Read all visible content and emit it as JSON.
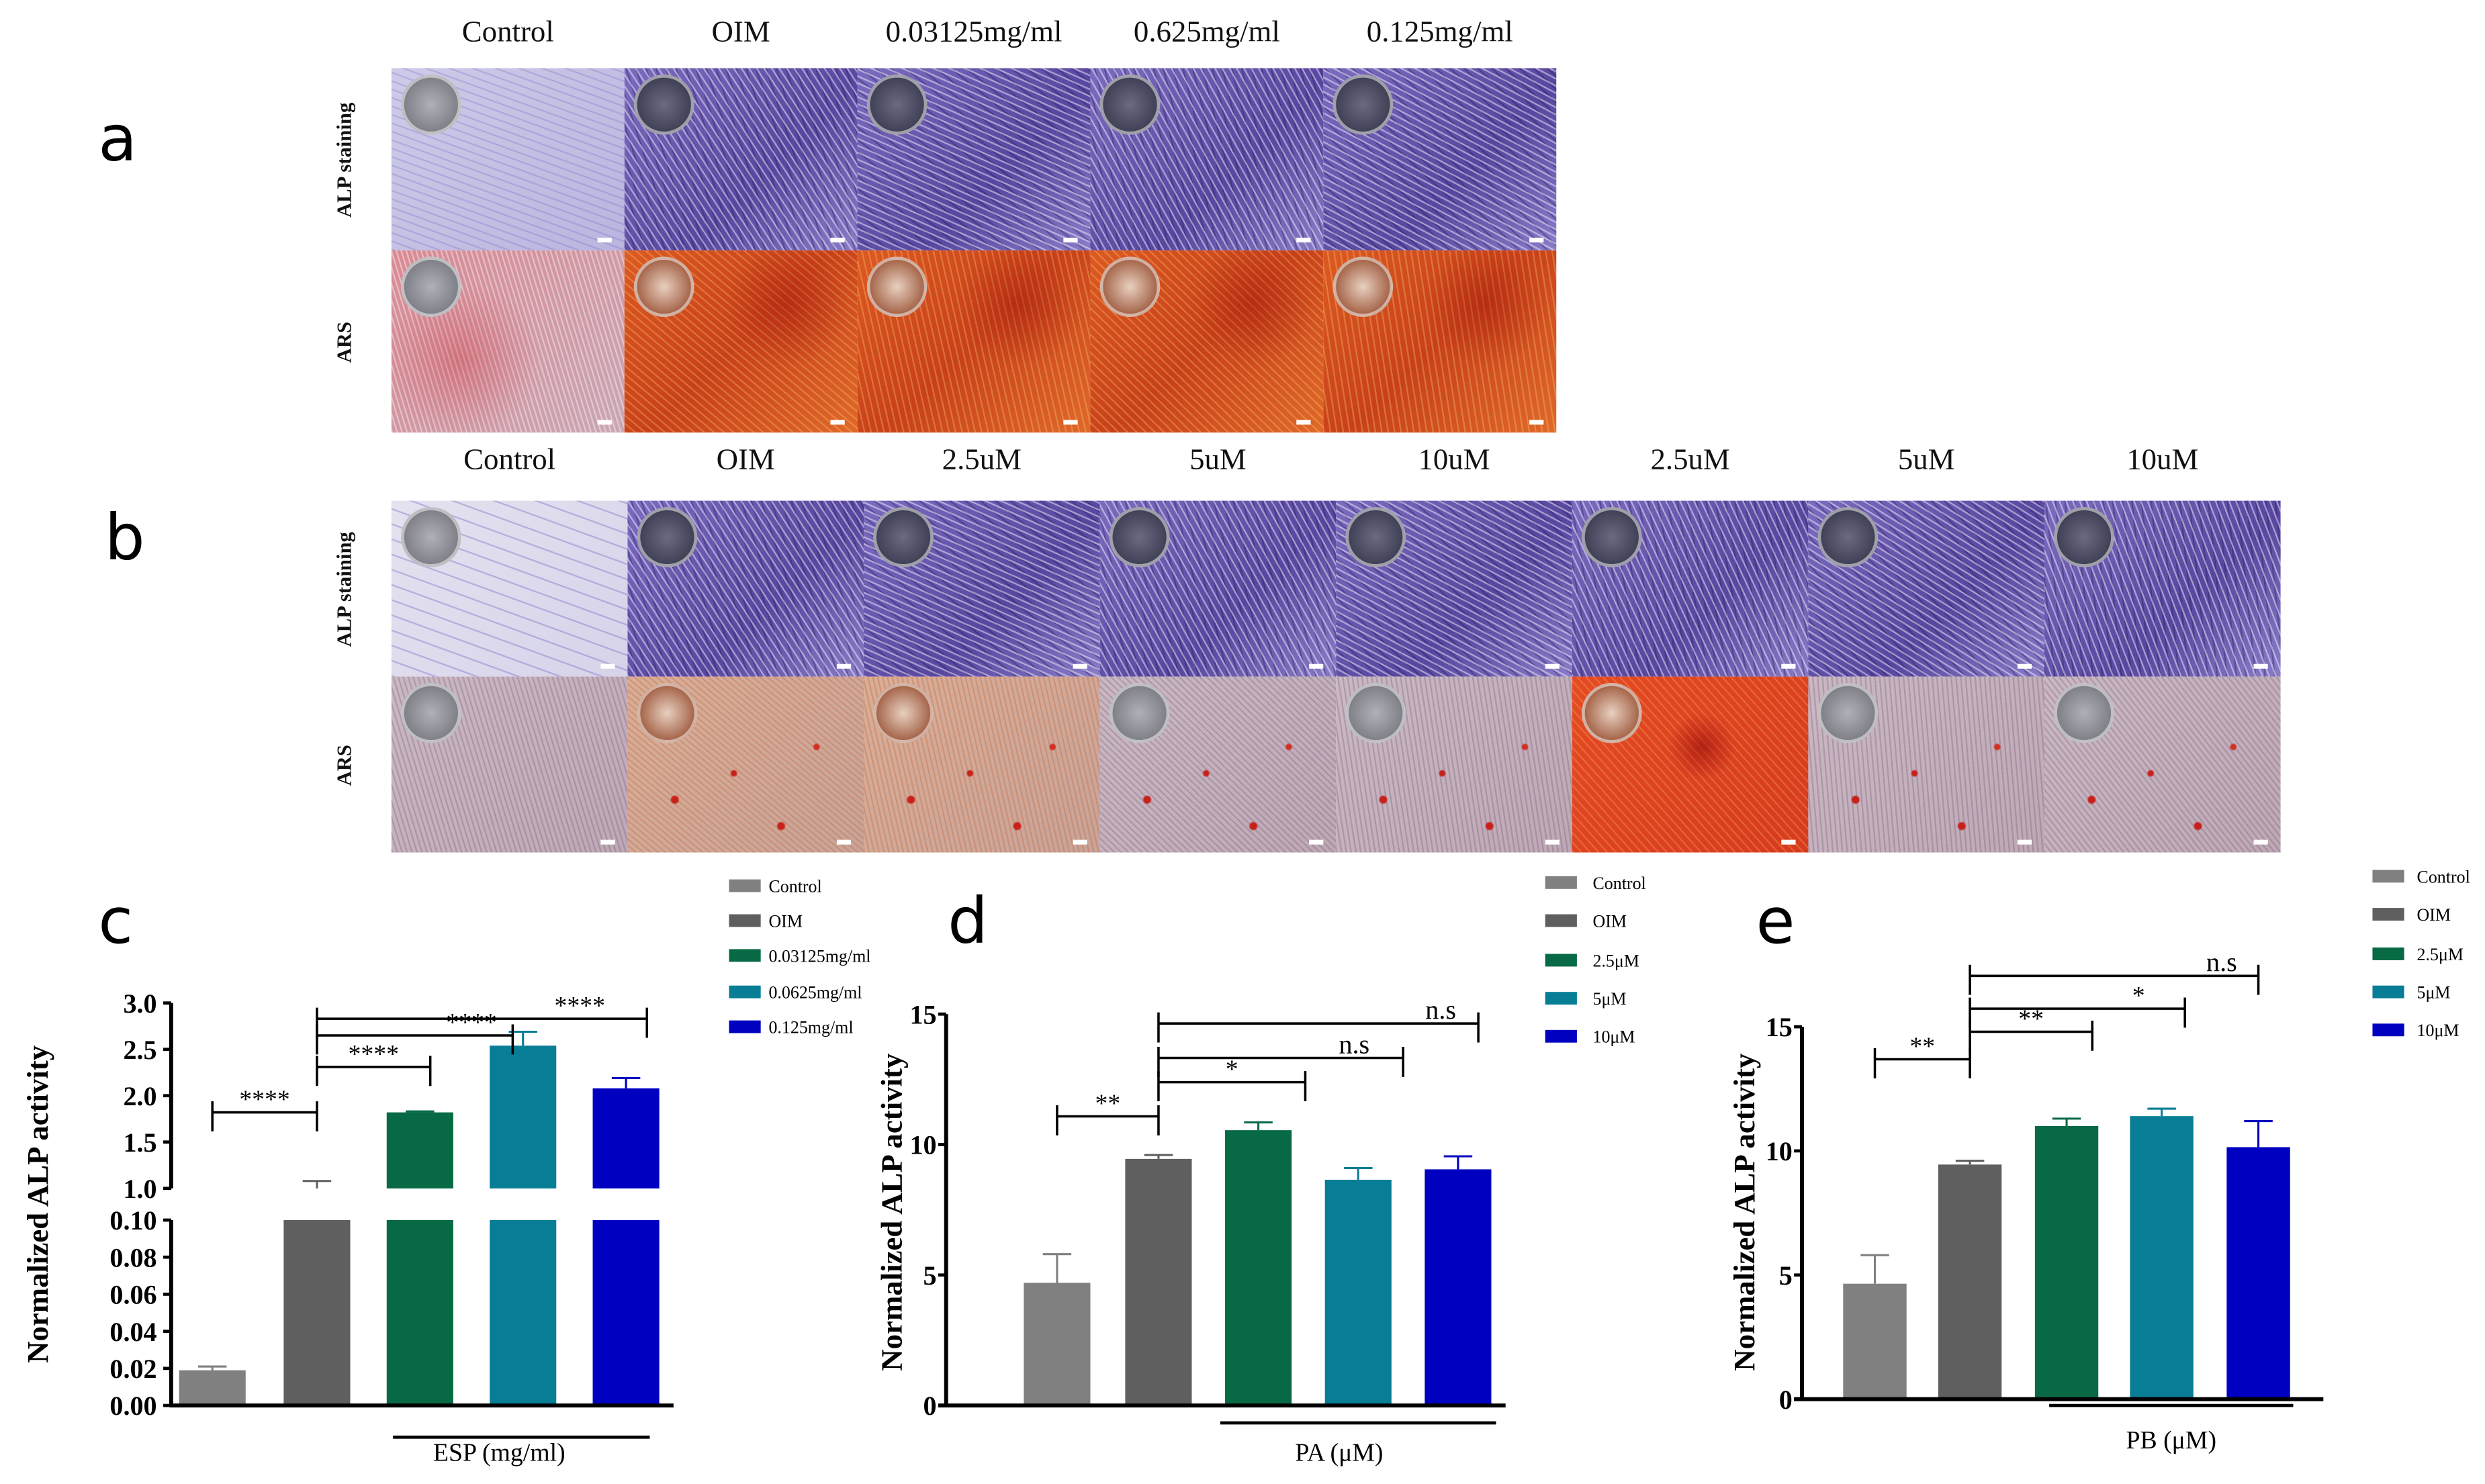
{
  "panel_a": {
    "letter": "a",
    "columns": [
      "Control",
      "OIM",
      "0.03125mg/ml",
      "0.625mg/ml",
      "0.125mg/ml"
    ],
    "rows": [
      {
        "label": "ALP  staining",
        "stains": [
          "alp-light",
          "alp",
          "alp",
          "alp",
          "alp"
        ]
      },
      {
        "label": "ARS",
        "stains": [
          "ars-light",
          "ars",
          "ars",
          "ars",
          "ars"
        ]
      }
    ]
  },
  "panel_b": {
    "letter": "b",
    "columns": [
      "Control",
      "OIM",
      "2.5uM",
      "5uM",
      "10uM",
      "2.5uM",
      "5uM",
      "10uM"
    ],
    "rows": [
      {
        "label": "ALP  staining",
        "stains": [
          "alp-faint",
          "alp",
          "alp",
          "alp",
          "alp",
          "alp",
          "alp",
          "alp"
        ]
      },
      {
        "label": "ARS",
        "stains": [
          "ars-pale",
          "ars-pale-orange",
          "ars-pale-orange",
          "ars-pale",
          "ars-pale",
          "ars-red",
          "ars-pale",
          "ars-pale"
        ]
      }
    ]
  },
  "colors": {
    "Control": "#808080",
    "OIM": "#5f5f5f",
    "green": "#086a45",
    "teal": "#077d96",
    "blue": "#0000c0"
  },
  "chart_data": [
    {
      "letter": "c",
      "type": "bar",
      "ylabel": "Normalized ALP activity",
      "group_label": "ESP (mg/ml)",
      "categories": [
        "Control",
        "OIM",
        "0.03125mg/ml",
        "0.0625mg/ml",
        "0.125mg/ml"
      ],
      "values": [
        0.019,
        1.0,
        1.82,
        2.54,
        2.08
      ],
      "errors": [
        0.002,
        0.08,
        0.01,
        0.15,
        0.11
      ],
      "colors": [
        "#808080",
        "#5f5f5f",
        "#086a45",
        "#077d96",
        "#0000c0"
      ],
      "broken_axis": {
        "lower": [
          0,
          0.1
        ],
        "upper": [
          1.0,
          3.0
        ]
      },
      "yticks_lower": [
        "0.00",
        "0.02",
        "0.04",
        "0.06",
        "0.08",
        "0.10"
      ],
      "yticks_upper": [
        "1.0",
        "1.5",
        "2.0",
        "2.5",
        "3.0"
      ],
      "significance": [
        {
          "from": 0,
          "to": 1,
          "y": 1.82,
          "label": "****"
        },
        {
          "from": 1,
          "to": 2.1,
          "y": 2.31,
          "label": "****"
        },
        {
          "from": 1,
          "to": 2.9,
          "y": 2.65,
          "label": "****"
        },
        {
          "from": 1,
          "to": 4.2,
          "y": 2.83,
          "label": "****"
        }
      ],
      "legend": "right"
    },
    {
      "letter": "d",
      "type": "bar",
      "ylabel": "Normalized ALP activity",
      "group_label": "PA (μM)",
      "categories": [
        "Control",
        "OIM",
        "2.5μM",
        "5μM",
        "10μM"
      ],
      "values": [
        4.7,
        9.45,
        10.55,
        8.65,
        9.05
      ],
      "errors": [
        1.1,
        0.15,
        0.3,
        0.45,
        0.5
      ],
      "colors": [
        "#808080",
        "#5f5f5f",
        "#086a45",
        "#077d96",
        "#0000c0"
      ],
      "ylim": [
        0,
        15
      ],
      "yticks": [
        "0",
        "5",
        "10",
        "15"
      ],
      "significance": [
        {
          "from": 0,
          "to": 1,
          "y": 11.08,
          "label": "**"
        },
        {
          "from": 1,
          "to": 2.47,
          "y": 12.39,
          "label": "*"
        },
        {
          "from": 1,
          "to": 3.45,
          "y": 13.32,
          "label": "n.s"
        },
        {
          "from": 1,
          "to": 4.2,
          "y": 14.64,
          "label": "n.s"
        }
      ],
      "legend": "right"
    },
    {
      "letter": "e",
      "type": "bar",
      "ylabel": "Normalized ALP activity",
      "group_label": "PB (μM)",
      "categories": [
        "Control",
        "OIM",
        "2.5μM",
        "5μM",
        "10μM"
      ],
      "values": [
        4.65,
        9.45,
        11.0,
        11.4,
        10.15
      ],
      "errors": [
        1.15,
        0.15,
        0.3,
        0.3,
        1.05
      ],
      "colors": [
        "#808080",
        "#5f5f5f",
        "#086a45",
        "#077d96",
        "#0000c0"
      ],
      "ylim": [
        0,
        15
      ],
      "yticks": [
        "0",
        "5",
        "10",
        "15"
      ],
      "significance": [
        {
          "from": 0,
          "to": 1,
          "y": 13.69,
          "label": "**"
        },
        {
          "from": 1,
          "to": 2.27,
          "y": 14.8,
          "label": "**"
        },
        {
          "from": 1,
          "to": 3.24,
          "y": 15.73,
          "label": "*"
        },
        {
          "from": 1,
          "to": 4.0,
          "y": 17.05,
          "label": "n.s"
        }
      ],
      "legend": "right"
    }
  ]
}
